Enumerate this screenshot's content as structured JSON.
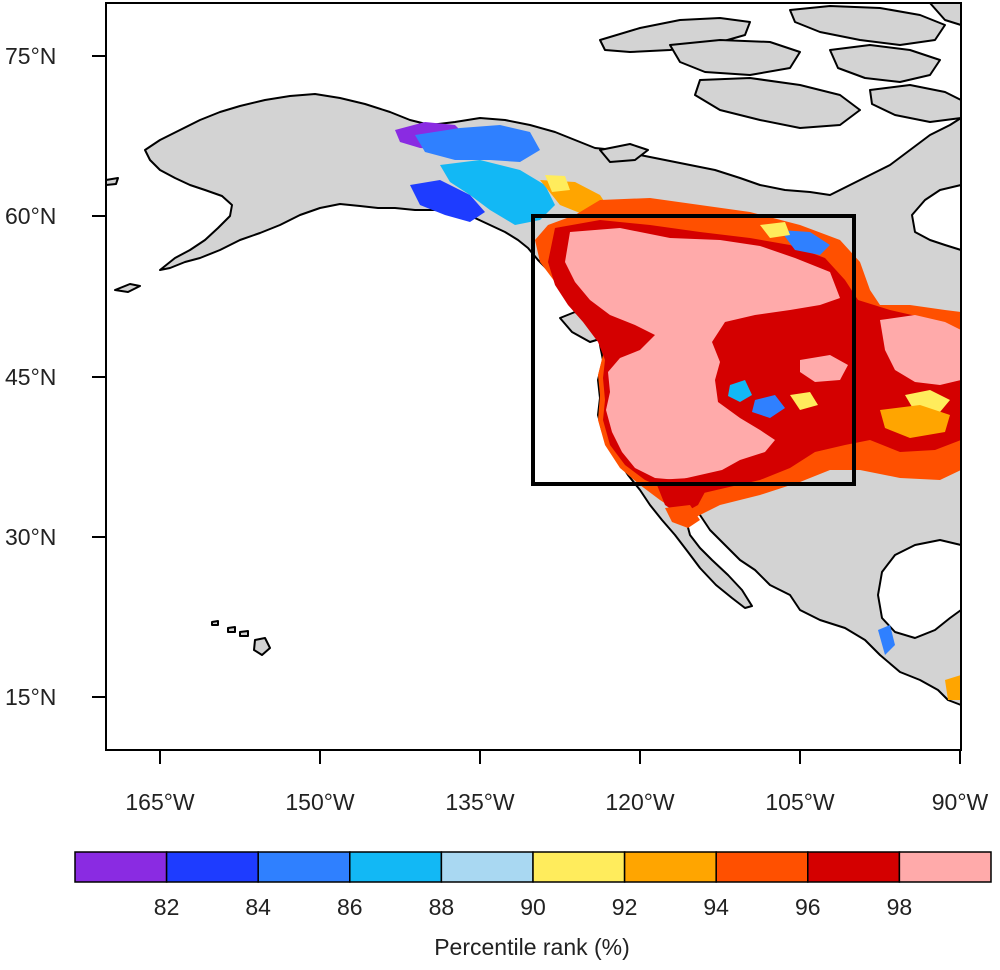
{
  "map": {
    "lat_ticks": [
      "75°N",
      "60°N",
      "45°N",
      "30°N",
      "15°N"
    ],
    "lon_ticks": [
      "165°W",
      "150°W",
      "135°W",
      "120°W",
      "105°W",
      "90°W"
    ],
    "region_box": {
      "lon_min": -130,
      "lon_max": -100,
      "lat_min": 35,
      "lat_max": 60
    }
  },
  "legend": {
    "title": "Percentile rank (%)",
    "tick_labels": [
      "82",
      "84",
      "86",
      "88",
      "90",
      "92",
      "94",
      "96",
      "98"
    ],
    "bins": [
      {
        "range": "<82",
        "color": "#8a2be2"
      },
      {
        "range": "82-84",
        "color": "#1e3cff"
      },
      {
        "range": "84-86",
        "color": "#2f80ff"
      },
      {
        "range": "86-88",
        "color": "#12b8f5"
      },
      {
        "range": "88-90",
        "color": "#a9d8f2"
      },
      {
        "range": "90-92",
        "color": "#ffec5c"
      },
      {
        "range": "92-94",
        "color": "#ffa500"
      },
      {
        "range": "94-96",
        "color": "#ff5000"
      },
      {
        "range": "96-98",
        "color": "#d40000"
      },
      {
        "range": ">98",
        "color": "#ffaaaa"
      }
    ]
  },
  "colors": {
    "land": "#d3d3d3",
    "ocean": "#ffffff",
    "coastline": "#000000"
  }
}
